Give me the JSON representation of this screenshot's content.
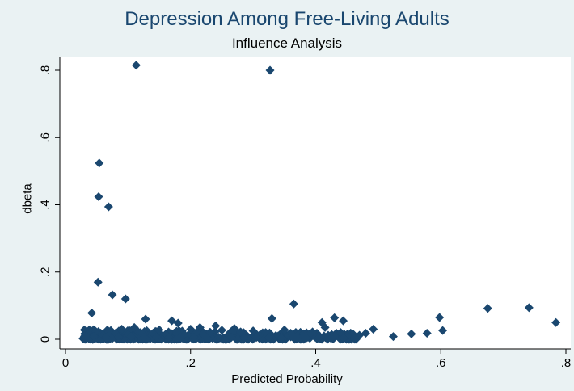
{
  "colors": {
    "background": "#eaf2f3",
    "plot_area": "#ffffff",
    "marker": "#1a476f",
    "title": "#1a476f"
  },
  "chart_data": {
    "type": "scatter",
    "title": "Depression Among Free-Living Adults",
    "subtitle": "Influence Analysis",
    "xlabel": "Predicted Probability",
    "ylabel": "dbeta",
    "xlim": [
      0,
      0.8
    ],
    "ylim": [
      0,
      0.8
    ],
    "xticks": [
      0,
      0.2,
      0.4,
      0.6,
      0.8
    ],
    "xtick_labels": [
      "0",
      ".2",
      ".4",
      ".6",
      ".8"
    ],
    "yticks": [
      0,
      0.2,
      0.4,
      0.6,
      0.8
    ],
    "ytick_labels": [
      "0",
      ".2",
      ".4",
      ".6",
      ".8"
    ],
    "grid": false,
    "legend": "none",
    "marker": "diamond",
    "points": [
      [
        0.113,
        0.815
      ],
      [
        0.327,
        0.8
      ],
      [
        0.054,
        0.524
      ],
      [
        0.053,
        0.424
      ],
      [
        0.069,
        0.394
      ],
      [
        0.052,
        0.17
      ],
      [
        0.075,
        0.132
      ],
      [
        0.096,
        0.12
      ],
      [
        0.042,
        0.078
      ],
      [
        0.128,
        0.06
      ],
      [
        0.365,
        0.105
      ],
      [
        0.33,
        0.062
      ],
      [
        0.43,
        0.064
      ],
      [
        0.444,
        0.055
      ],
      [
        0.41,
        0.05
      ],
      [
        0.492,
        0.03
      ],
      [
        0.524,
        0.008
      ],
      [
        0.553,
        0.016
      ],
      [
        0.578,
        0.018
      ],
      [
        0.598,
        0.065
      ],
      [
        0.603,
        0.026
      ],
      [
        0.675,
        0.092
      ],
      [
        0.741,
        0.094
      ],
      [
        0.784,
        0.05
      ],
      [
        0.038,
        0.028
      ],
      [
        0.028,
        0.002
      ],
      [
        0.17,
        0.055
      ],
      [
        0.18,
        0.048
      ],
      [
        0.215,
        0.035
      ],
      [
        0.24,
        0.04
      ],
      [
        0.27,
        0.032
      ],
      [
        0.3,
        0.025
      ],
      [
        0.35,
        0.028
      ],
      [
        0.395,
        0.022
      ],
      [
        0.415,
        0.035
      ],
      [
        0.44,
        0.02
      ],
      [
        0.46,
        0.015
      ],
      [
        0.48,
        0.018
      ],
      [
        0.09,
        0.03
      ],
      [
        0.11,
        0.035
      ],
      [
        0.15,
        0.028
      ],
      [
        0.2,
        0.03
      ],
      [
        0.25,
        0.027
      ],
      [
        0.28,
        0.022
      ],
      [
        0.32,
        0.02
      ],
      [
        0.36,
        0.018
      ],
      [
        0.39,
        0.015
      ],
      [
        0.42,
        0.012
      ],
      [
        0.45,
        0.01
      ],
      [
        0.47,
        0.012
      ],
      [
        0.06,
        0.012
      ],
      [
        0.08,
        0.018
      ],
      [
        0.1,
        0.015
      ],
      [
        0.12,
        0.02
      ],
      [
        0.14,
        0.018
      ],
      [
        0.16,
        0.015
      ],
      [
        0.19,
        0.014
      ],
      [
        0.22,
        0.016
      ],
      [
        0.26,
        0.013
      ],
      [
        0.31,
        0.012
      ],
      [
        0.34,
        0.01
      ],
      [
        0.38,
        0.009
      ],
      [
        0.43,
        0.008
      ],
      [
        0.035,
        0.005
      ],
      [
        0.045,
        0.008
      ],
      [
        0.065,
        0.006
      ],
      [
        0.085,
        0.007
      ],
      [
        0.105,
        0.008
      ],
      [
        0.125,
        0.006
      ],
      [
        0.145,
        0.007
      ],
      [
        0.165,
        0.006
      ],
      [
        0.185,
        0.005
      ],
      [
        0.205,
        0.006
      ],
      [
        0.225,
        0.005
      ],
      [
        0.245,
        0.006
      ],
      [
        0.265,
        0.005
      ],
      [
        0.285,
        0.004
      ],
      [
        0.305,
        0.005
      ],
      [
        0.325,
        0.004
      ],
      [
        0.345,
        0.004
      ],
      [
        0.365,
        0.005
      ],
      [
        0.385,
        0.004
      ],
      [
        0.405,
        0.005
      ],
      [
        0.425,
        0.004
      ],
      [
        0.445,
        0.004
      ],
      [
        0.465,
        0.003
      ]
    ]
  }
}
